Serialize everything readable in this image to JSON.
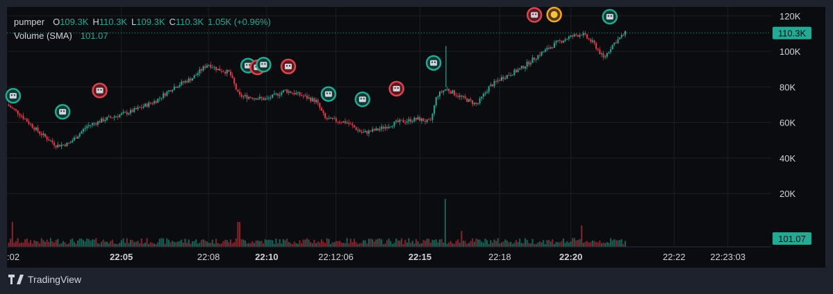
{
  "legend": {
    "symbol": "pumper",
    "open_label": "O",
    "open": "109.3K",
    "high_label": "H",
    "high": "110.3K",
    "low_label": "L",
    "low": "109.3K",
    "close_label": "C",
    "close": "110.3K",
    "change": "1.05K (+0.96%)",
    "volume_label": "Volume (SMA)",
    "volume": "101.07"
  },
  "price_badge": "110.3K",
  "volume_badge": "101.07",
  "brand": "TradingView",
  "colors": {
    "up": "#22ab94",
    "down": "#f23645",
    "background": "#0b0c0f",
    "frame": "#1e222d",
    "badge": "#22ab94"
  },
  "chart_data": {
    "type": "candlestick",
    "y_ticks": [
      "20K",
      "40K",
      "60K",
      "80K",
      "100K",
      "120K"
    ],
    "y_tick_values": [
      20000,
      40000,
      60000,
      80000,
      100000,
      120000
    ],
    "ylim": [
      -10000,
      125000
    ],
    "x_ticks": [
      {
        "label": ":02",
        "t": 0,
        "bold": false
      },
      {
        "label": "22:05",
        "t": 0.185,
        "bold": true
      },
      {
        "label": "22:08",
        "t": 0.326,
        "bold": false
      },
      {
        "label": "22:10",
        "t": 0.42,
        "bold": true
      },
      {
        "label": "22:12:06",
        "t": 0.532,
        "bold": false
      },
      {
        "label": "22:15",
        "t": 0.668,
        "bold": true
      },
      {
        "label": "22:18",
        "t": 0.797,
        "bold": false
      },
      {
        "label": "22:20",
        "t": 0.912,
        "bold": true
      },
      {
        "label": "22:22",
        "t": 1.079,
        "bold": false
      },
      {
        "label": "22:23:03",
        "t": 1.166,
        "bold": false
      }
    ],
    "price_path": [
      [
        0,
        70000
      ],
      [
        0.02,
        65000
      ],
      [
        0.05,
        55000
      ],
      [
        0.08,
        47000
      ],
      [
        0.1,
        48000
      ],
      [
        0.13,
        58000
      ],
      [
        0.16,
        62000
      ],
      [
        0.2,
        66000
      ],
      [
        0.24,
        72000
      ],
      [
        0.27,
        80000
      ],
      [
        0.3,
        85000
      ],
      [
        0.325,
        93000
      ],
      [
        0.34,
        90000
      ],
      [
        0.36,
        88000
      ],
      [
        0.375,
        75000
      ],
      [
        0.4,
        74000
      ],
      [
        0.42,
        73000
      ],
      [
        0.45,
        78000
      ],
      [
        0.47,
        76000
      ],
      [
        0.5,
        72000
      ],
      [
        0.515,
        62000
      ],
      [
        0.55,
        60000
      ],
      [
        0.575,
        54000
      ],
      [
        0.6,
        56000
      ],
      [
        0.63,
        60000
      ],
      [
        0.665,
        62000
      ],
      [
        0.685,
        60000
      ],
      [
        0.695,
        75000
      ],
      [
        0.71,
        79000
      ],
      [
        0.73,
        75000
      ],
      [
        0.76,
        70000
      ],
      [
        0.78,
        80000
      ],
      [
        0.8,
        85000
      ],
      [
        0.83,
        90000
      ],
      [
        0.86,
        98000
      ],
      [
        0.89,
        105000
      ],
      [
        0.91,
        108000
      ],
      [
        0.93,
        110000
      ],
      [
        0.95,
        104000
      ],
      [
        0.965,
        96000
      ],
      [
        0.98,
        104000
      ],
      [
        1,
        110300
      ]
    ],
    "volume_spikes": [
      [
        0.01,
        14000
      ],
      [
        0.375,
        14000
      ],
      [
        0.71,
        27000
      ],
      [
        0.735,
        9000
      ],
      [
        0.93,
        12000
      ]
    ],
    "markers": [
      {
        "t": 0.01,
        "price": 75000,
        "kind": "green"
      },
      {
        "t": 0.09,
        "price": 66000,
        "kind": "green"
      },
      {
        "t": 0.15,
        "price": 78000,
        "kind": "red"
      },
      {
        "t": 0.39,
        "price": 92000,
        "kind": "green"
      },
      {
        "t": 0.405,
        "price": 91000,
        "kind": "red"
      },
      {
        "t": 0.415,
        "price": 92500,
        "kind": "green"
      },
      {
        "t": 0.455,
        "price": 91500,
        "kind": "red"
      },
      {
        "t": 0.52,
        "price": 76000,
        "kind": "green"
      },
      {
        "t": 0.575,
        "price": 73000,
        "kind": "green"
      },
      {
        "t": 0.63,
        "price": 79000,
        "kind": "red"
      },
      {
        "t": 0.69,
        "price": 93500,
        "kind": "green"
      },
      {
        "t": 0.853,
        "price": 120500,
        "kind": "red"
      },
      {
        "t": 0.885,
        "price": 120700,
        "kind": "orange"
      },
      {
        "t": 0.975,
        "price": 119500,
        "kind": "green"
      }
    ]
  }
}
